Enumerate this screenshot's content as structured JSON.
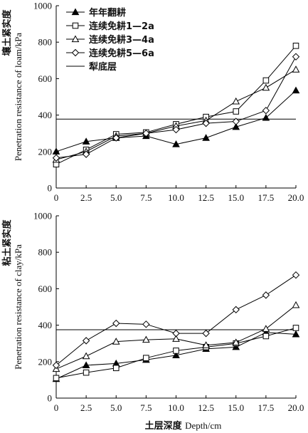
{
  "chart_data": [
    {
      "type": "line",
      "ylabel_cn": "壤土紧实度",
      "ylabel_en": "Penetration resistance of loam/kPa",
      "ylim": [
        0,
        1000
      ],
      "yticks": [
        "0",
        "200",
        "400",
        "600",
        "800",
        "1000"
      ],
      "x": [
        0,
        2.5,
        5.0,
        7.5,
        10.0,
        12.5,
        15.0,
        17.5,
        20.0
      ],
      "xticks": [
        "0",
        "2.5",
        "5.0",
        "7.5",
        "10.0",
        "12.5",
        "15.0",
        "17.5",
        "20.0"
      ],
      "xlim": [
        0,
        20
      ],
      "legend_position": "top-left",
      "reference_line": {
        "name": "犁底层",
        "value": 378
      },
      "series": [
        {
          "name": "年年翻耕",
          "marker": "filled-triangle",
          "values": [
            200,
            255,
            275,
            285,
            240,
            275,
            335,
            385,
            535
          ]
        },
        {
          "name": "连续免耕1—2a",
          "marker": "open-square",
          "values": [
            130,
            210,
            295,
            305,
            350,
            390,
            420,
            590,
            780
          ]
        },
        {
          "name": "连续免耕3—4a",
          "marker": "open-triangle",
          "values": [
            155,
            200,
            285,
            300,
            340,
            370,
            475,
            550,
            650
          ]
        },
        {
          "name": "连续免耕5—6a",
          "marker": "open-diamond",
          "values": [
            165,
            185,
            275,
            300,
            320,
            355,
            365,
            425,
            720
          ]
        }
      ]
    },
    {
      "type": "line",
      "ylabel_cn": "粘土紧实度",
      "ylabel_en": "Penetration resistance of clay/kPa",
      "xlabel_cn": "土层深度",
      "xlabel_en": "Depth/cm",
      "ylim": [
        0,
        1000
      ],
      "yticks": [
        "0",
        "200",
        "400",
        "600",
        "800",
        "1000"
      ],
      "x": [
        0,
        2.5,
        5.0,
        7.5,
        10.0,
        12.5,
        15.0,
        17.5,
        20.0
      ],
      "xticks": [
        "0",
        "2.5",
        "5.0",
        "7.5",
        "10.0",
        "12.5",
        "15.0",
        "17.5",
        "20.0"
      ],
      "xlim": [
        0,
        20
      ],
      "reference_line": {
        "value": 375
      },
      "series": [
        {
          "name": "年年翻耕",
          "marker": "filled-triangle",
          "values": [
            105,
            180,
            190,
            210,
            235,
            270,
            280,
            360,
            350
          ]
        },
        {
          "name": "连续免耕1—2a",
          "marker": "open-square",
          "values": [
            110,
            140,
            165,
            220,
            260,
            280,
            300,
            340,
            385
          ]
        },
        {
          "name": "连续免耕3—4a",
          "marker": "open-triangle",
          "values": [
            160,
            230,
            310,
            320,
            325,
            290,
            305,
            380,
            510
          ]
        },
        {
          "name": "连续免耕5—6a",
          "marker": "open-diamond",
          "values": [
            180,
            315,
            410,
            405,
            355,
            355,
            485,
            565,
            675
          ]
        }
      ]
    }
  ]
}
